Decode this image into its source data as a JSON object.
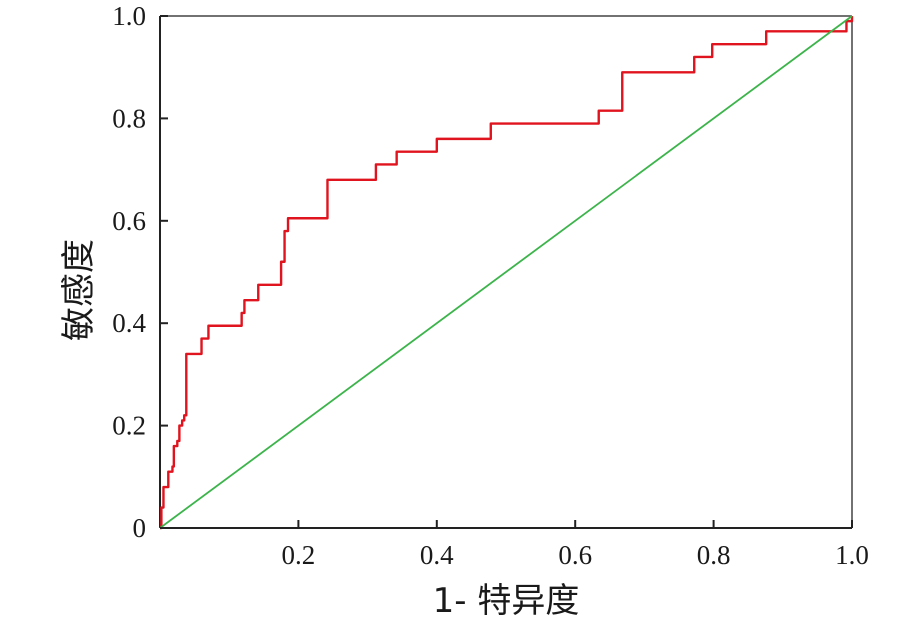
{
  "chart_data": {
    "type": "line",
    "title": "",
    "xlabel": "1- 特异度",
    "ylabel": "敏感度",
    "xlim": [
      0,
      1.0
    ],
    "ylim": [
      0,
      1.0
    ],
    "x_ticks": [
      0.2,
      0.4,
      0.6,
      0.8,
      1.0
    ],
    "x_tick_labels": [
      "0.2",
      "0.4",
      "0.6",
      "0.8",
      "1.0"
    ],
    "y_ticks": [
      0,
      0.2,
      0.4,
      0.6,
      0.8,
      1.0
    ],
    "y_tick_labels": [
      "0",
      "0.2",
      "0.4",
      "0.6",
      "0.8",
      "1.0"
    ],
    "grid": false,
    "legend": "none",
    "series": [
      {
        "color": "#e0141e",
        "style": "step",
        "points": [
          [
            0.0,
            0.0
          ],
          [
            0.002,
            0.04
          ],
          [
            0.005,
            0.08
          ],
          [
            0.01,
            0.08
          ],
          [
            0.012,
            0.11
          ],
          [
            0.018,
            0.12
          ],
          [
            0.02,
            0.16
          ],
          [
            0.025,
            0.17
          ],
          [
            0.028,
            0.2
          ],
          [
            0.032,
            0.21
          ],
          [
            0.035,
            0.22
          ],
          [
            0.038,
            0.34
          ],
          [
            0.055,
            0.34
          ],
          [
            0.06,
            0.37
          ],
          [
            0.068,
            0.37
          ],
          [
            0.07,
            0.395
          ],
          [
            0.11,
            0.395
          ],
          [
            0.118,
            0.42
          ],
          [
            0.122,
            0.445
          ],
          [
            0.14,
            0.445
          ],
          [
            0.142,
            0.475
          ],
          [
            0.17,
            0.475
          ],
          [
            0.175,
            0.52
          ],
          [
            0.18,
            0.58
          ],
          [
            0.185,
            0.605
          ],
          [
            0.23,
            0.605
          ],
          [
            0.242,
            0.68
          ],
          [
            0.31,
            0.68
          ],
          [
            0.312,
            0.71
          ],
          [
            0.34,
            0.71
          ],
          [
            0.342,
            0.735
          ],
          [
            0.38,
            0.735
          ],
          [
            0.4,
            0.76
          ],
          [
            0.468,
            0.76
          ],
          [
            0.478,
            0.79
          ],
          [
            0.63,
            0.79
          ],
          [
            0.634,
            0.815
          ],
          [
            0.653,
            0.815
          ],
          [
            0.668,
            0.89
          ],
          [
            0.77,
            0.89
          ],
          [
            0.772,
            0.92
          ],
          [
            0.795,
            0.92
          ],
          [
            0.798,
            0.945
          ],
          [
            0.87,
            0.945
          ],
          [
            0.876,
            0.97
          ],
          [
            0.99,
            0.97
          ],
          [
            0.992,
            0.99
          ],
          [
            1.0,
            1.0
          ]
        ]
      },
      {
        "color": "#3cb44b",
        "style": "line",
        "points": [
          [
            0,
            0
          ],
          [
            1,
            1
          ]
        ]
      }
    ]
  }
}
